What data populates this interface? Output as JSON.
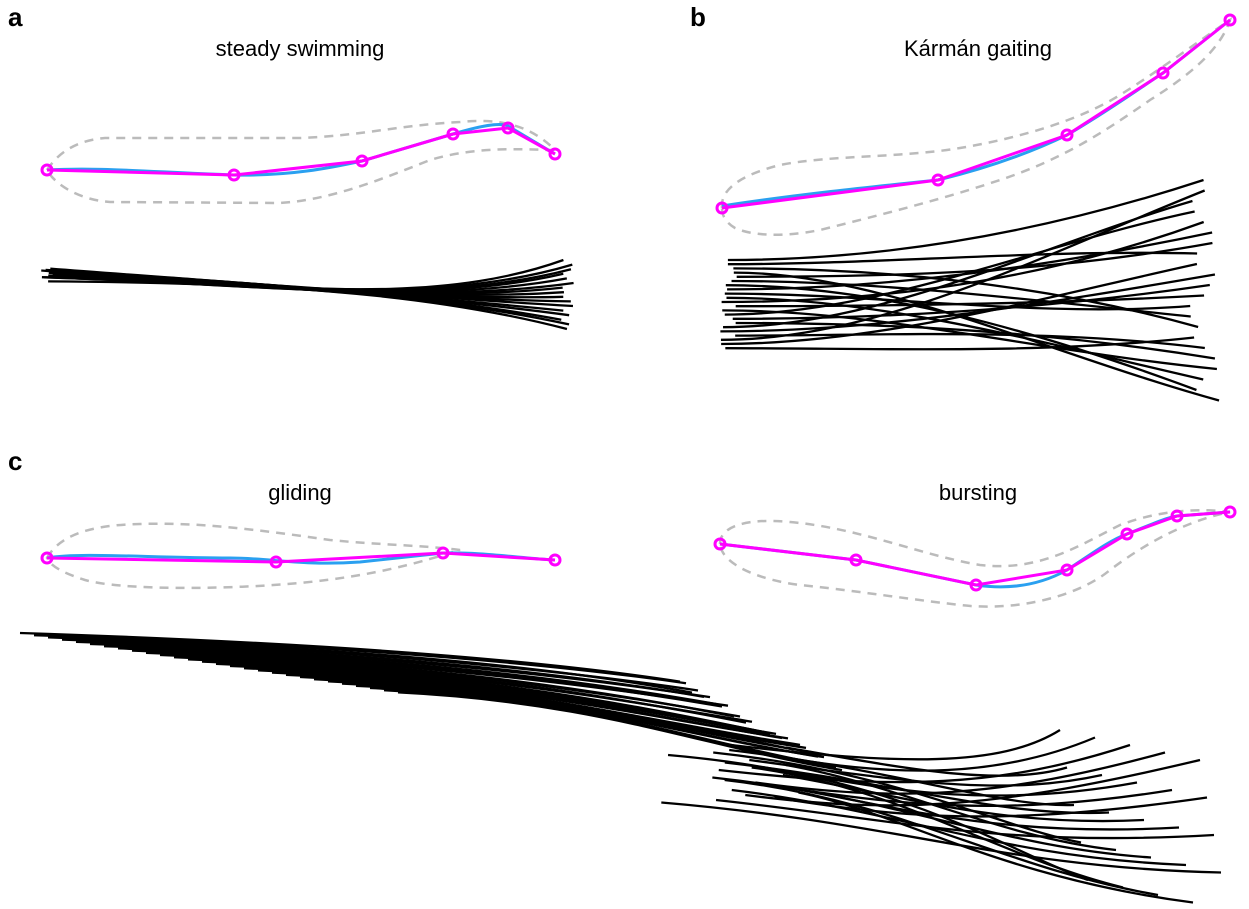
{
  "panels": [
    {
      "label": "a",
      "title": "steady swimming"
    },
    {
      "label": "b",
      "title": "Kármán gaiting"
    },
    {
      "label": "c",
      "title": "gliding"
    },
    {
      "title": "bursting"
    }
  ]
}
